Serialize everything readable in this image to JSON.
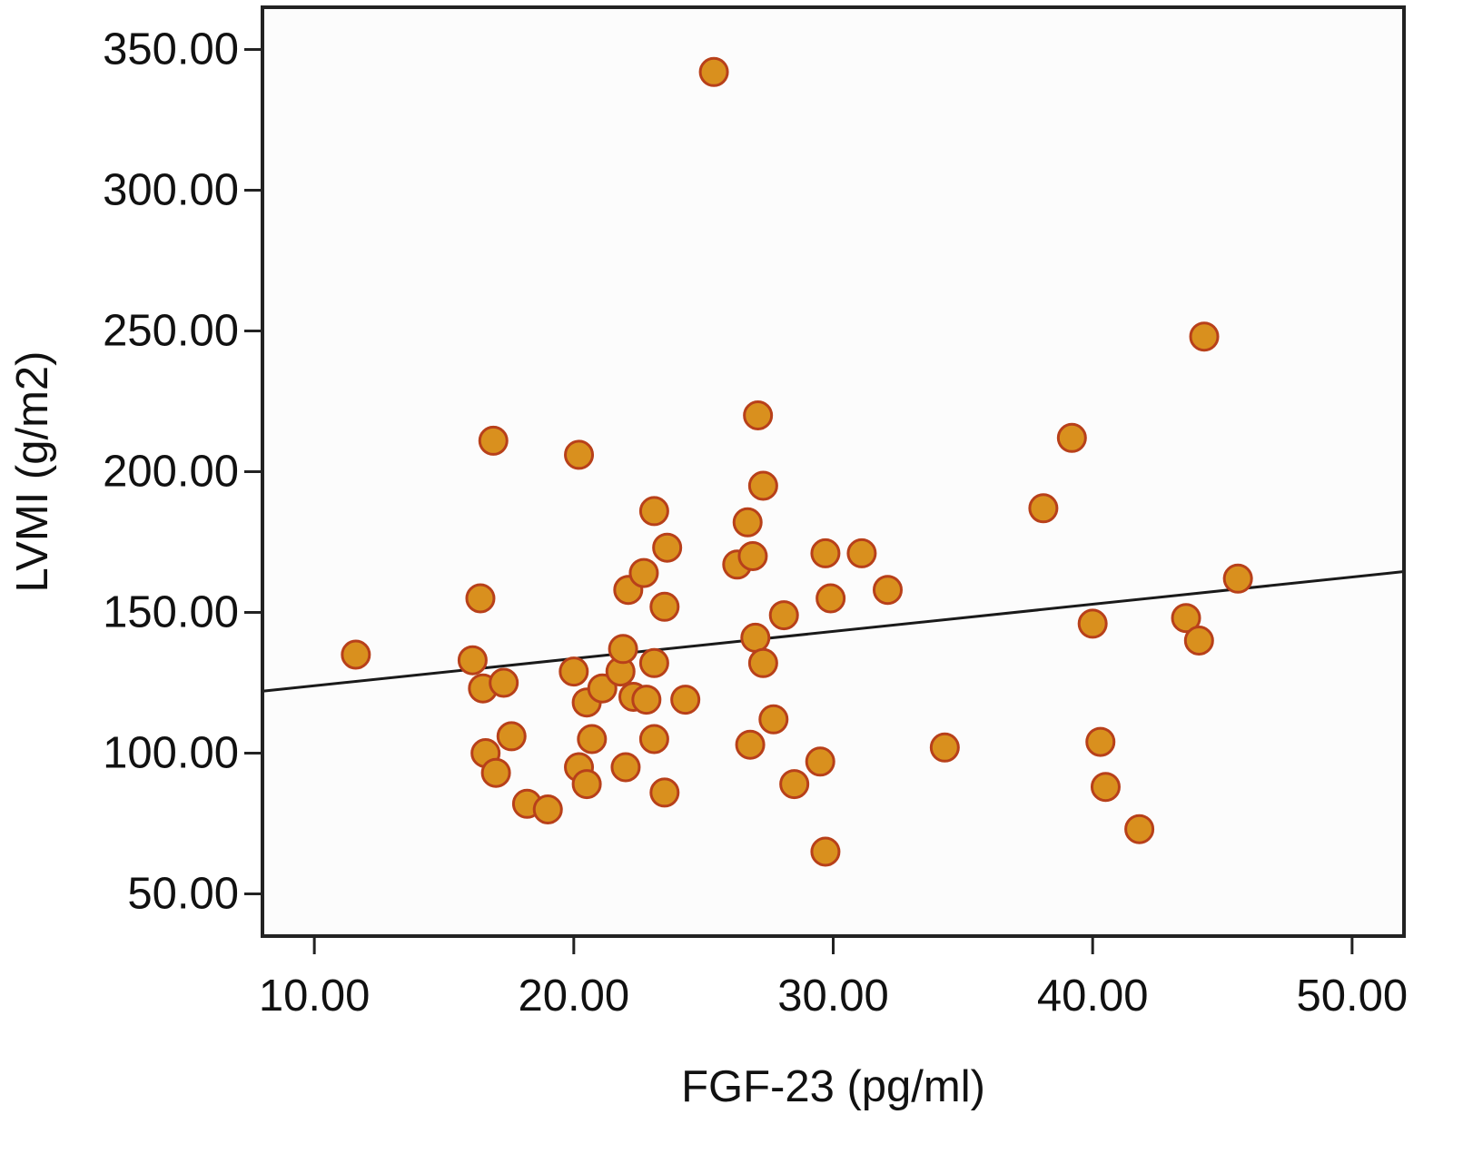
{
  "chart_data": {
    "type": "scatter",
    "title": "",
    "xlabel": "FGF-23 (pg/ml)",
    "ylabel": "LVMI (g/m2)",
    "xlim": [
      8.0,
      52.0
    ],
    "ylim": [
      35.0,
      365.0
    ],
    "xticks": [
      10,
      20,
      30,
      40,
      50
    ],
    "xtick_labels": [
      "10.00",
      "20.00",
      "30.00",
      "40.00",
      "50.00"
    ],
    "yticks": [
      50,
      100,
      150,
      200,
      250,
      300,
      350
    ],
    "ytick_labels": [
      "50.00",
      "100.00",
      "150.00",
      "200.00",
      "250.00",
      "300.00",
      "350.00"
    ],
    "grid": false,
    "legend": "none",
    "colors": {
      "plot_background": "#fcfcfc",
      "point_fill": "#d9901e",
      "point_stroke": "#b8401a",
      "fit_line": "#1a1a1a",
      "frame": "#222222"
    },
    "points": {
      "x": [
        11.6,
        16.1,
        16.4,
        16.5,
        16.6,
        16.9,
        17.0,
        17.3,
        17.6,
        18.2,
        19.0,
        20.0,
        20.2,
        20.2,
        20.5,
        20.5,
        20.7,
        21.1,
        21.8,
        21.9,
        22.0,
        22.1,
        22.3,
        22.7,
        22.8,
        23.1,
        23.1,
        23.1,
        23.5,
        23.5,
        23.6,
        24.3,
        25.4,
        26.3,
        26.7,
        26.8,
        26.9,
        27.0,
        27.1,
        27.3,
        27.3,
        27.7,
        28.1,
        28.5,
        29.5,
        29.7,
        29.7,
        29.9,
        31.1,
        32.1,
        34.3,
        38.1,
        39.2,
        40.0,
        40.3,
        40.5,
        41.8,
        43.6,
        44.1,
        44.3,
        45.6
      ],
      "y": [
        135,
        133,
        155,
        123,
        100,
        211,
        93,
        125,
        106,
        82,
        80,
        129,
        95,
        206,
        89,
        118,
        105,
        123,
        129,
        137,
        95,
        158,
        120,
        164,
        119,
        105,
        186,
        132,
        86,
        152,
        173,
        119,
        342,
        167,
        182,
        103,
        170,
        141,
        220,
        132,
        195,
        112,
        149,
        89,
        97,
        171,
        65,
        155,
        171,
        158,
        102,
        187,
        212,
        146,
        104,
        88,
        73,
        148,
        140,
        248,
        162
      ]
    },
    "fit_line": {
      "x": [
        8.0,
        52.0
      ],
      "y": [
        122.0,
        164.5
      ]
    }
  }
}
